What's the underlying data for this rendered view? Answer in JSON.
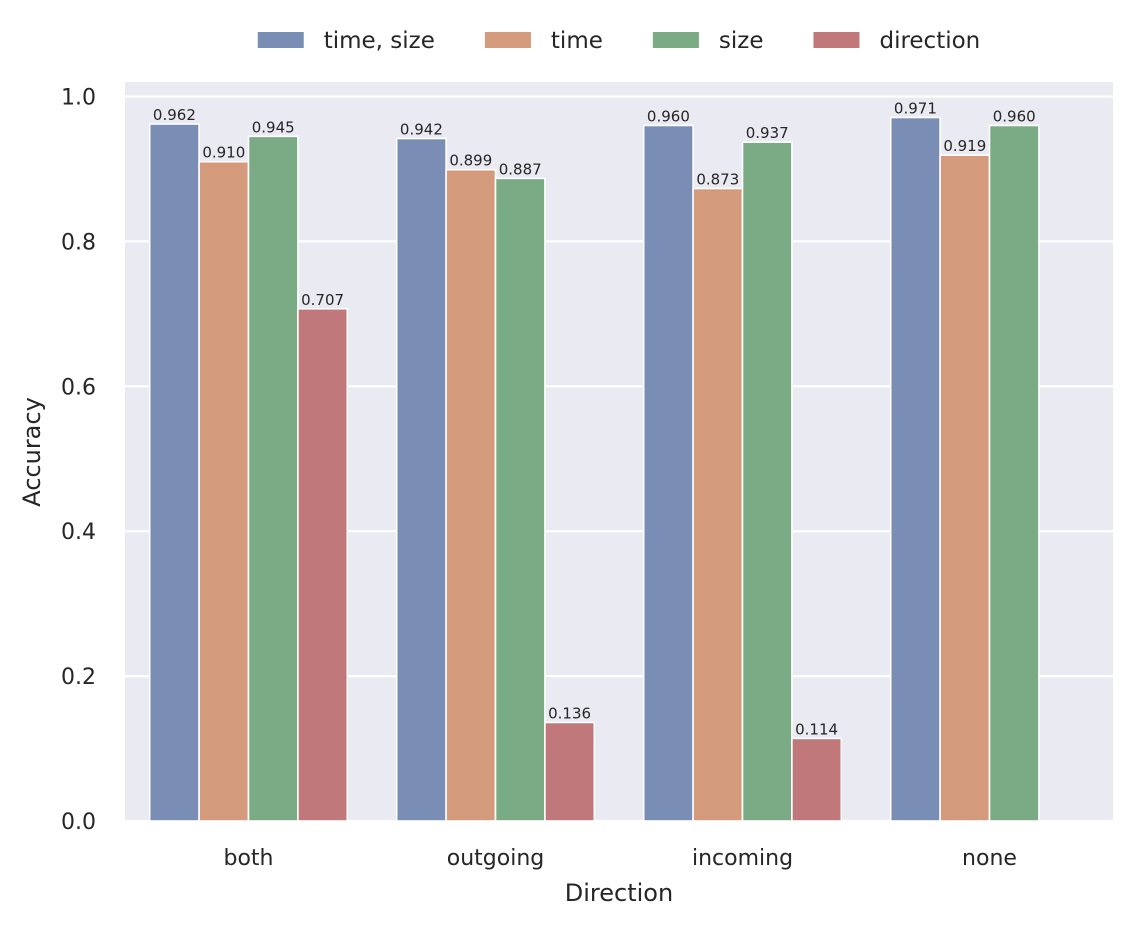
{
  "chart_data": {
    "type": "bar",
    "categories": [
      "both",
      "outgoing",
      "incoming",
      "none"
    ],
    "series": [
      {
        "name": "time, size",
        "values": [
          0.962,
          0.942,
          0.96,
          0.971
        ],
        "labels": [
          "0.962",
          "0.942",
          "0.960",
          "0.971"
        ],
        "color": "#7a8db4"
      },
      {
        "name": "time",
        "values": [
          0.91,
          0.899,
          0.873,
          0.919
        ],
        "labels": [
          "0.910",
          "0.899",
          "0.873",
          "0.919"
        ],
        "color": "#d39b7c"
      },
      {
        "name": "size",
        "values": [
          0.945,
          0.887,
          0.937,
          0.96
        ],
        "labels": [
          "0.945",
          "0.887",
          "0.937",
          "0.960"
        ],
        "color": "#7aab85"
      },
      {
        "name": "direction",
        "values": [
          0.707,
          0.136,
          0.114,
          null
        ],
        "labels": [
          "0.707",
          "0.136",
          "0.114",
          null
        ],
        "color": "#c0787b"
      }
    ],
    "xlabel": "Direction",
    "ylabel": "Accuracy",
    "ylim": [
      0,
      1.02
    ],
    "yticks": [
      0.0,
      0.2,
      0.4,
      0.6,
      0.8,
      1.0
    ],
    "ytick_labels": [
      "0.0",
      "0.2",
      "0.4",
      "0.6",
      "0.8",
      "1.0"
    ],
    "grid": true,
    "legend_position": "top-center",
    "background_color": "#eaeaf2",
    "grid_color": "#ffffff"
  }
}
